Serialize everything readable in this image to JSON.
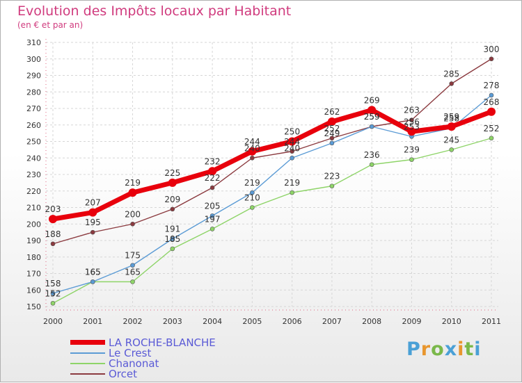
{
  "chart_data": {
    "type": "line",
    "title": "Evolution des Impôts locaux par Habitant",
    "subtitle": "(en € et par an)",
    "xlabel": "",
    "ylabel": "",
    "categories": [
      "2000",
      "2001",
      "2002",
      "2003",
      "2004",
      "2005",
      "2006",
      "2007",
      "2008",
      "2009",
      "2010",
      "2011"
    ],
    "ylim": [
      150,
      310
    ],
    "yticks": [
      150,
      160,
      170,
      180,
      190,
      200,
      210,
      220,
      230,
      240,
      250,
      260,
      270,
      280,
      290,
      300,
      310
    ],
    "grid": true,
    "series": [
      {
        "name": "LA ROCHE-BLANCHE",
        "color": "#e8000c",
        "values": [
          203,
          207,
          219,
          225,
          232,
          244,
          250,
          262,
          269,
          256,
          259,
          268
        ]
      },
      {
        "name": "Le Crest",
        "color": "#5b9bd5",
        "values": [
          158,
          165,
          175,
          191,
          205,
          219,
          240,
          249,
          259,
          253,
          258,
          278
        ]
      },
      {
        "name": "Chanonat",
        "color": "#8ed468",
        "values": [
          152,
          165,
          165,
          185,
          197,
          210,
          219,
          223,
          236,
          239,
          245,
          252
        ]
      },
      {
        "name": "Orcet",
        "color": "#8b3a3f",
        "values": [
          188,
          195,
          200,
          209,
          222,
          240,
          244,
          252,
          259,
          263,
          285,
          300
        ]
      }
    ]
  },
  "logo": {
    "text": "Proxiti",
    "colors": [
      "#4aa0d6",
      "#e8962e",
      "#7ab84a",
      "#4aa0d6",
      "#e8962e",
      "#7ab84a",
      "#4aa0d6"
    ]
  }
}
